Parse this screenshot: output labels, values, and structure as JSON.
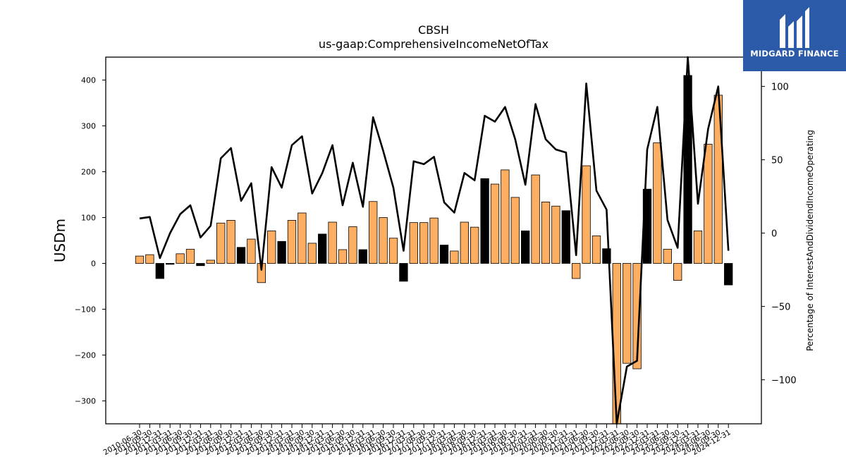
{
  "chart_data": {
    "type": "bar",
    "title": "CBSH",
    "subtitle": "us-gaap:ComprehensiveIncomeNetOfTax",
    "ylabel": "USDm",
    "y2label": "Percentage of InterestAndDividendIncomeOperating",
    "ylim": [
      -350,
      450
    ],
    "y2lim": [
      -130,
      120
    ],
    "yticks": [
      -300,
      -200,
      -100,
      0,
      100,
      200,
      300,
      400
    ],
    "y2ticks": [
      -100,
      -50,
      0,
      50,
      100
    ],
    "colors": {
      "positive_bar": "#fdae61",
      "highlight_bar": "#000000",
      "line": "#000000"
    },
    "categories": [
      "2010-06-30",
      "2010-09-30",
      "2010-12-31",
      "2011-03-31",
      "2011-06-30",
      "2011-09-30",
      "2011-12-31",
      "2012-03-31",
      "2012-06-30",
      "2012-09-30",
      "2012-12-31",
      "2013-03-31",
      "2013-06-30",
      "2013-09-30",
      "2013-12-31",
      "2014-03-31",
      "2014-06-30",
      "2014-09-30",
      "2014-12-31",
      "2015-03-31",
      "2015-06-30",
      "2015-09-30",
      "2015-12-31",
      "2016-03-31",
      "2016-06-30",
      "2016-09-30",
      "2016-12-31",
      "2017-03-31",
      "2017-06-30",
      "2017-09-30",
      "2017-12-31",
      "2018-03-31",
      "2018-06-30",
      "2018-09-30",
      "2018-12-31",
      "2019-03-31",
      "2019-06-30",
      "2019-09-30",
      "2019-12-31",
      "2020-03-31",
      "2020-06-30",
      "2020-09-30",
      "2020-12-31",
      "2021-03-31",
      "2021-06-30",
      "2021-09-30",
      "2021-12-31",
      "2022-03-31",
      "2022-06-30",
      "2022-09-30",
      "2022-12-31",
      "2023-03-31",
      "2023-06-30",
      "2023-09-30",
      "2023-12-31",
      "2024-03-31",
      "2024-06-30",
      "2024-09-30",
      "2024-12-31"
    ],
    "series": [
      {
        "type": "bar",
        "axis": "left",
        "values": [
          16,
          19,
          -33,
          -2,
          21,
          31,
          -5,
          7,
          88,
          94,
          35,
          53,
          -42,
          71,
          48,
          94,
          110,
          44,
          64,
          90,
          30,
          80,
          30,
          135,
          100,
          55,
          -39,
          89,
          89,
          99,
          40,
          27,
          90,
          79,
          185,
          173,
          204,
          144,
          71,
          193,
          134,
          125,
          115,
          -33,
          213,
          60,
          32,
          -358,
          -218,
          -230,
          162,
          263,
          31,
          -37,
          410,
          71,
          260,
          367,
          -47
        ],
        "highlight": [
          false,
          false,
          true,
          true,
          false,
          false,
          true,
          false,
          false,
          false,
          true,
          false,
          false,
          false,
          true,
          false,
          false,
          false,
          true,
          false,
          false,
          false,
          true,
          false,
          false,
          false,
          true,
          false,
          false,
          false,
          true,
          false,
          false,
          false,
          true,
          false,
          false,
          false,
          true,
          false,
          false,
          false,
          true,
          false,
          false,
          false,
          true,
          false,
          false,
          false,
          true,
          false,
          false,
          false,
          true,
          false,
          false,
          false,
          true
        ]
      },
      {
        "type": "line",
        "axis": "right",
        "values": [
          10,
          11,
          -17,
          0,
          13,
          19,
          -3,
          5,
          51,
          58,
          22,
          34,
          -25,
          45,
          31,
          60,
          66,
          27,
          41,
          60,
          19,
          48,
          18,
          79,
          56,
          31,
          -12,
          49,
          47,
          52,
          21,
          14,
          41,
          36,
          80,
          76,
          86,
          64,
          33,
          88,
          64,
          57,
          55,
          -15,
          102,
          29,
          16,
          -130,
          -91,
          -87,
          57,
          86,
          9,
          -10,
          121,
          20,
          71,
          100,
          -12
        ]
      }
    ]
  },
  "logo": {
    "text": "MIDGARD FINANCE"
  }
}
